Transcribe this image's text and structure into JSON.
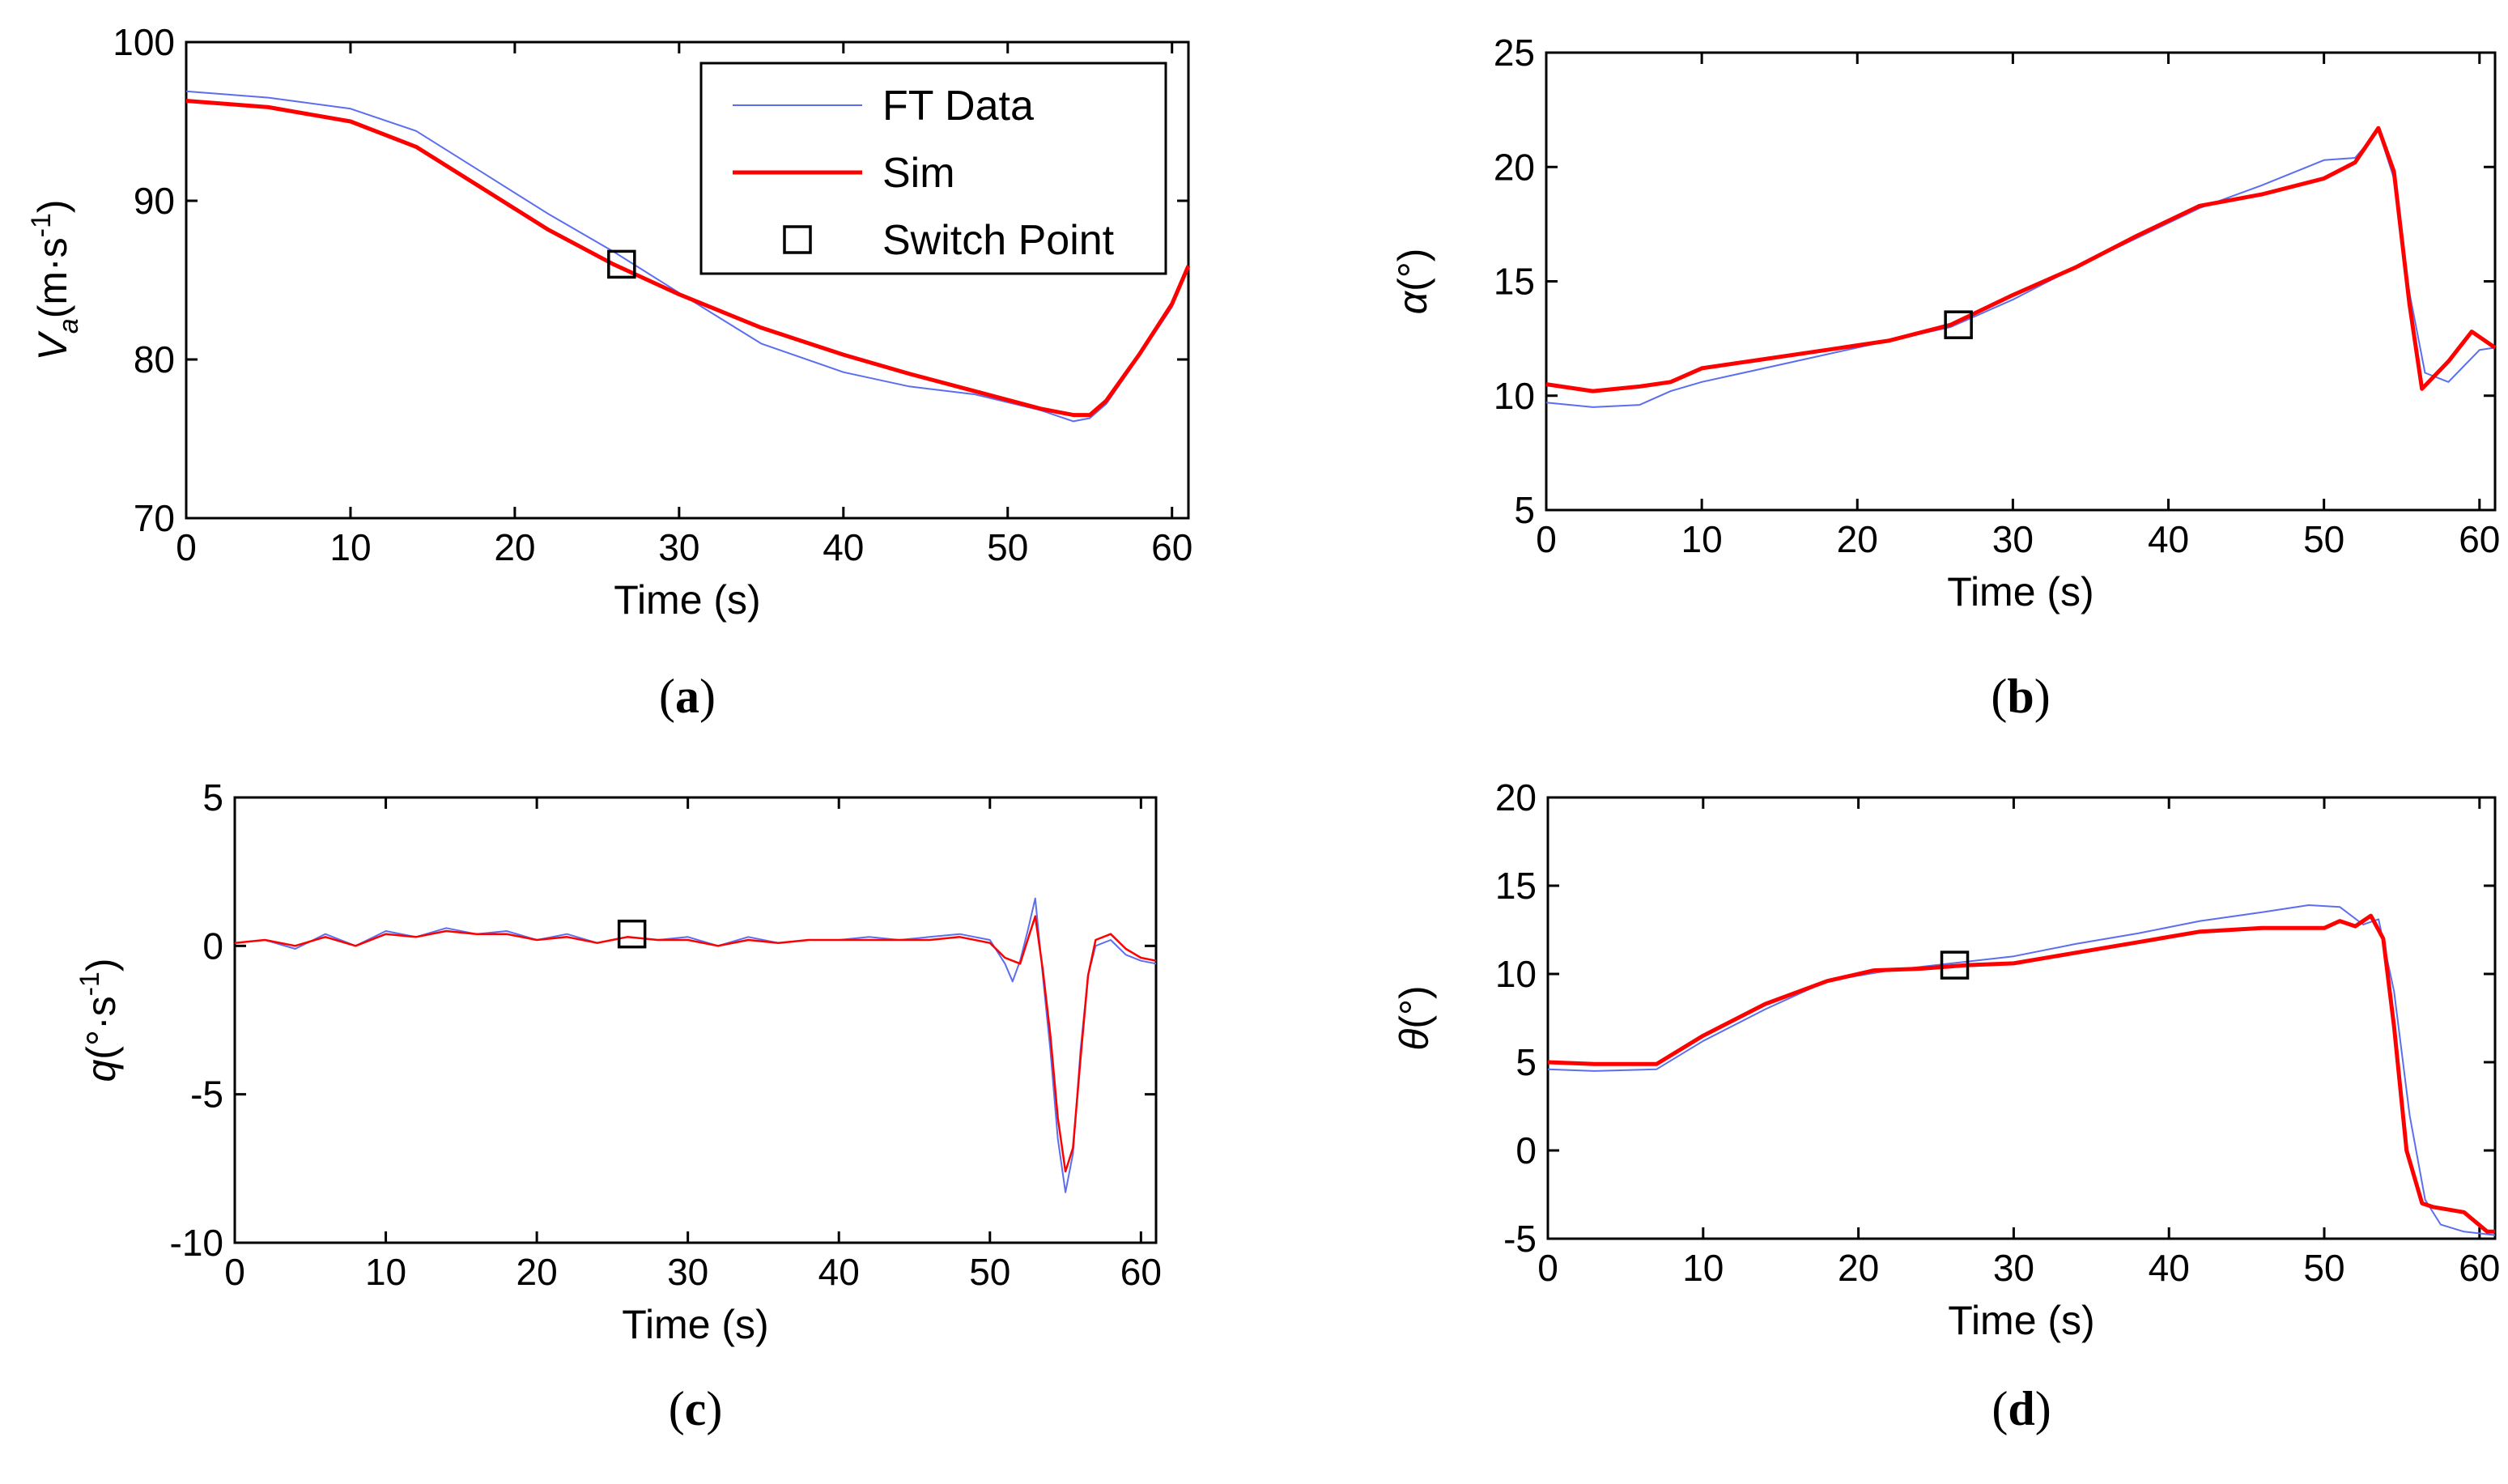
{
  "chart_data": [
    {
      "type": "line",
      "panel_label": "a",
      "title": "",
      "xlabel": "Time (s)",
      "ylabel_main": "V",
      "ylabel_sub": "a",
      "ylabel_unit_open": "(m·s",
      "ylabel_unit_exp": "-1",
      "ylabel_unit_close": ")",
      "xlim": [
        0,
        61
      ],
      "ylim": [
        70,
        100
      ],
      "xticks": [
        0,
        10,
        20,
        30,
        40,
        50,
        60
      ],
      "yticks": [
        70,
        80,
        90,
        100
      ],
      "switch_point": {
        "x": 26.5,
        "y": 86
      },
      "legend": {
        "position": "top-right",
        "entries": [
          "FT Data",
          "Sim",
          "Switch Point"
        ]
      },
      "series": [
        {
          "name": "FT Data",
          "color": "#5b6ef0",
          "x": [
            0,
            5,
            10,
            14,
            18,
            22,
            26,
            30,
            35,
            40,
            44,
            48,
            52,
            54,
            55,
            56,
            58,
            60,
            61
          ],
          "y": [
            96.9,
            96.5,
            95.8,
            94.4,
            91.8,
            89.2,
            86.8,
            84.2,
            81.0,
            79.2,
            78.3,
            77.8,
            76.8,
            76.1,
            76.3,
            77.2,
            80.2,
            83.3,
            85.8
          ]
        },
        {
          "name": "Sim",
          "color": "#ff0000",
          "x": [
            0,
            5,
            10,
            14,
            18,
            22,
            26,
            30,
            35,
            40,
            44,
            48,
            52,
            54,
            55,
            56,
            58,
            60,
            61
          ],
          "y": [
            96.3,
            95.9,
            95.0,
            93.4,
            90.8,
            88.2,
            86.0,
            84.1,
            82.0,
            80.3,
            79.1,
            78.0,
            76.9,
            76.5,
            76.5,
            77.4,
            80.3,
            83.5,
            85.9
          ]
        }
      ]
    },
    {
      "type": "line",
      "panel_label": "b",
      "title": "",
      "xlabel": "Time (s)",
      "ylabel_main": "α",
      "ylabel_unit_open": "(°)",
      "xlim": [
        0,
        61
      ],
      "ylim": [
        5,
        25
      ],
      "xticks": [
        0,
        10,
        20,
        30,
        40,
        50,
        60
      ],
      "yticks": [
        5,
        10,
        15,
        20,
        25
      ],
      "switch_point": {
        "x": 26.5,
        "y": 13.1
      },
      "series": [
        {
          "name": "FT Data",
          "color": "#5b6ef0",
          "x": [
            0,
            3,
            6,
            8,
            10,
            14,
            18,
            22,
            26,
            30,
            34,
            38,
            42,
            46,
            50,
            52,
            53.5,
            54.5,
            55.5,
            56.5,
            58,
            60,
            61
          ],
          "y": [
            9.7,
            9.5,
            9.6,
            10.2,
            10.6,
            11.2,
            11.8,
            12.4,
            13.0,
            14.2,
            15.6,
            16.9,
            18.2,
            19.2,
            20.3,
            20.4,
            21.6,
            19.5,
            14.5,
            11.0,
            10.6,
            12.0,
            12.1
          ]
        },
        {
          "name": "Sim",
          "color": "#ff0000",
          "x": [
            0,
            3,
            6,
            8,
            10,
            14,
            18,
            22,
            26,
            30,
            34,
            38,
            42,
            46,
            50,
            52,
            53.5,
            54.5,
            55.5,
            56.3,
            58,
            59.5,
            61
          ],
          "y": [
            10.5,
            10.2,
            10.4,
            10.6,
            11.2,
            11.6,
            12.0,
            12.4,
            13.1,
            14.4,
            15.6,
            17.0,
            18.3,
            18.8,
            19.5,
            20.2,
            21.7,
            19.8,
            14.0,
            10.3,
            11.5,
            12.8,
            12.1
          ]
        }
      ]
    },
    {
      "type": "line",
      "panel_label": "c",
      "title": "",
      "xlabel": "Time (s)",
      "ylabel_main": "q",
      "ylabel_unit_open": "(°·s",
      "ylabel_unit_exp": "-1",
      "ylabel_unit_close": ")",
      "xlim": [
        0,
        61
      ],
      "ylim": [
        -10,
        5
      ],
      "xticks": [
        0,
        10,
        20,
        30,
        40,
        50,
        60
      ],
      "yticks": [
        -10,
        -5,
        0,
        5
      ],
      "switch_point": {
        "x": 26.3,
        "y": 0.4
      },
      "series": [
        {
          "name": "FT Data",
          "color": "#5b6ef0",
          "x": [
            0,
            2,
            4,
            6,
            8,
            10,
            12,
            14,
            16,
            18,
            20,
            22,
            24,
            26,
            28,
            30,
            32,
            34,
            36,
            38,
            40,
            42,
            44,
            46,
            48,
            50,
            51,
            51.5,
            52,
            52.5,
            53,
            53.5,
            54,
            54.5,
            55,
            55.5,
            56,
            56.5,
            57,
            58,
            59,
            60,
            61
          ],
          "y": [
            0.1,
            0.2,
            -0.1,
            0.4,
            0.0,
            0.5,
            0.3,
            0.6,
            0.4,
            0.5,
            0.2,
            0.4,
            0.1,
            0.3,
            0.2,
            0.3,
            0.0,
            0.3,
            0.1,
            0.2,
            0.2,
            0.3,
            0.2,
            0.3,
            0.4,
            0.2,
            -0.6,
            -1.2,
            -0.5,
            0.5,
            1.6,
            -1.0,
            -3.5,
            -6.5,
            -8.3,
            -7.0,
            -3.5,
            -1.0,
            0.0,
            0.2,
            -0.3,
            -0.5,
            -0.6
          ]
        },
        {
          "name": "Sim",
          "color": "#ff0000",
          "x": [
            0,
            2,
            4,
            6,
            8,
            10,
            12,
            14,
            16,
            18,
            20,
            22,
            24,
            26,
            28,
            30,
            32,
            34,
            36,
            38,
            40,
            42,
            44,
            46,
            48,
            50,
            51,
            52,
            52.5,
            53,
            53.5,
            54,
            54.5,
            55,
            55.5,
            56,
            56.5,
            57,
            58,
            59,
            60,
            61
          ],
          "y": [
            0.1,
            0.2,
            0.0,
            0.3,
            0.0,
            0.4,
            0.3,
            0.5,
            0.4,
            0.4,
            0.2,
            0.3,
            0.1,
            0.3,
            0.2,
            0.2,
            0.0,
            0.2,
            0.1,
            0.2,
            0.2,
            0.2,
            0.2,
            0.2,
            0.3,
            0.1,
            -0.4,
            -0.6,
            0.2,
            1.0,
            -0.8,
            -3.0,
            -5.8,
            -7.6,
            -6.8,
            -3.8,
            -1.0,
            0.2,
            0.4,
            -0.1,
            -0.4,
            -0.5
          ]
        }
      ]
    },
    {
      "type": "line",
      "panel_label": "d",
      "title": "",
      "xlabel": "Time (s)",
      "ylabel_main": "θ",
      "ylabel_unit_open": "(°)",
      "xlim": [
        0,
        61
      ],
      "ylim": [
        -5,
        20
      ],
      "xticks": [
        0,
        10,
        20,
        30,
        40,
        50,
        60
      ],
      "yticks": [
        -5,
        0,
        5,
        10,
        15,
        20
      ],
      "switch_point": {
        "x": 26.2,
        "y": 10.5
      },
      "series": [
        {
          "name": "FT Data",
          "color": "#5b6ef0",
          "x": [
            0,
            3,
            7,
            10,
            14,
            18,
            22,
            26,
            30,
            34,
            38,
            42,
            46,
            49,
            51,
            52.5,
            53.5,
            54.5,
            55.5,
            56.5,
            57.5,
            59,
            61
          ],
          "y": [
            4.6,
            4.5,
            4.6,
            6.2,
            8.0,
            9.6,
            10.2,
            10.6,
            11.0,
            11.7,
            12.3,
            13.0,
            13.5,
            13.9,
            13.8,
            12.8,
            13.1,
            9.0,
            2.0,
            -2.8,
            -4.2,
            -4.6,
            -4.8
          ]
        },
        {
          "name": "Sim",
          "color": "#ff0000",
          "x": [
            0,
            3,
            7,
            10,
            14,
            18,
            21,
            24,
            27,
            30,
            34,
            38,
            42,
            46,
            50,
            51,
            52,
            53,
            53.8,
            54.5,
            55.3,
            56.3,
            57,
            59,
            60.5,
            61
          ],
          "y": [
            5.0,
            4.9,
            4.9,
            6.5,
            8.3,
            9.6,
            10.2,
            10.3,
            10.5,
            10.6,
            11.2,
            11.8,
            12.4,
            12.6,
            12.6,
            13.0,
            12.7,
            13.3,
            12.0,
            7.0,
            0.0,
            -3.0,
            -3.2,
            -3.5,
            -4.6,
            -4.6
          ]
        }
      ]
    }
  ]
}
